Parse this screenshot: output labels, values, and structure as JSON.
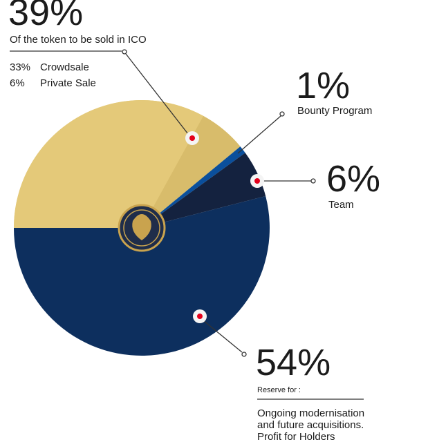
{
  "chart_data": {
    "type": "pie",
    "categories": [
      "Crowdsale",
      "Private Sale",
      "Bounty Program",
      "Team",
      null
    ],
    "values": [
      33,
      6,
      1,
      6,
      54
    ],
    "value_labels": [
      "33%",
      "6%",
      "1%",
      "6%",
      "54%"
    ],
    "colors": [
      "#e4c979",
      "#d8bc6b",
      "#0a4f9c",
      "#14223f",
      "#0d2f5e"
    ],
    "group": {
      "value": 39,
      "label": "39%",
      "caption": "Of the token to be sold in ICO",
      "color": "#e4c979"
    },
    "reserve_heading": "Reserve for :",
    "reserve_note": [
      "Ongoing modernisation",
      "and future acquisitions.",
      "Profit for Holders"
    ]
  }
}
